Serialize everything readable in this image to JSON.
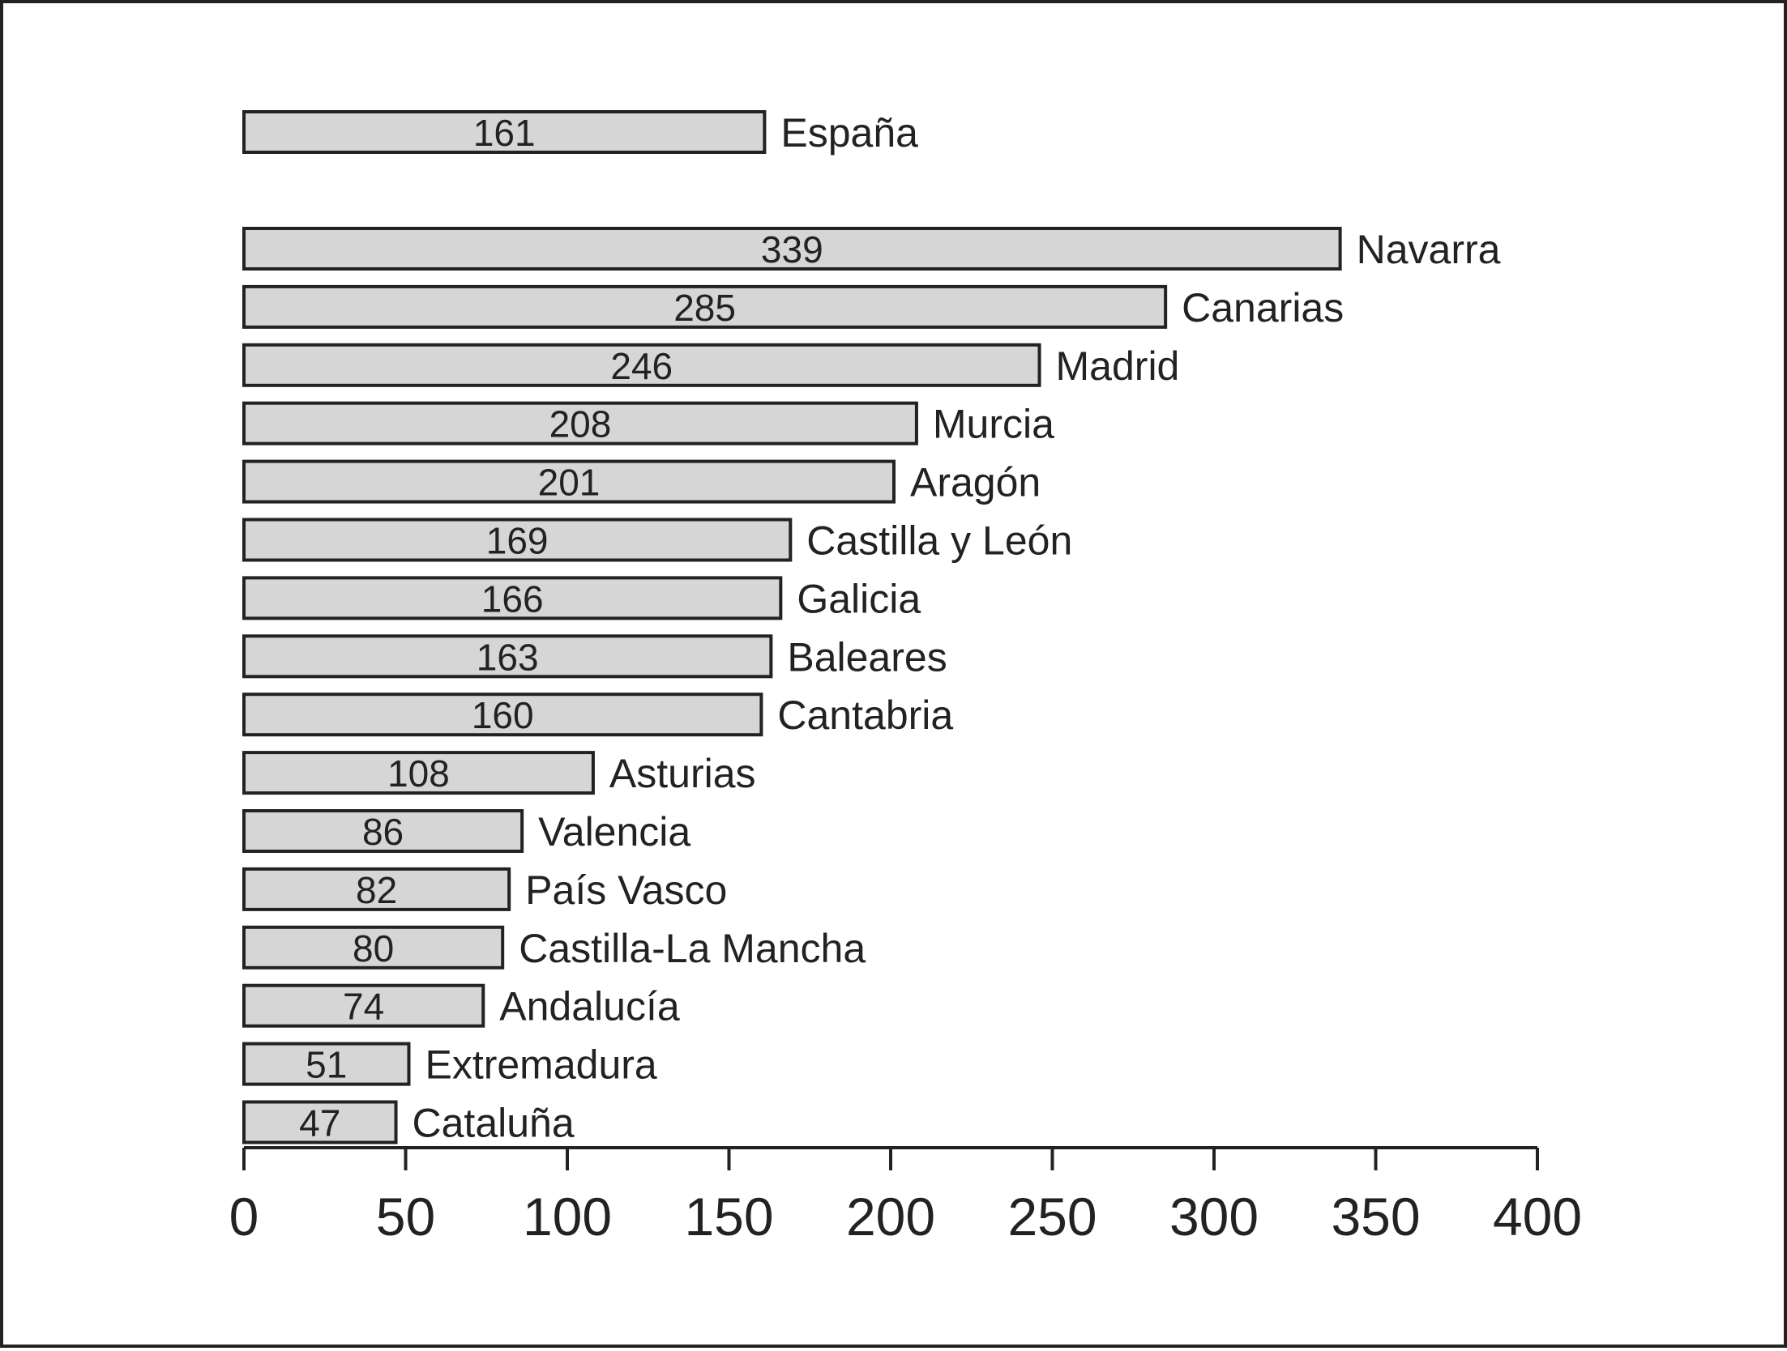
{
  "chart_data": {
    "type": "bar",
    "orientation": "horizontal",
    "title": "",
    "xlabel": "",
    "ylabel": "",
    "xlim": [
      0,
      400
    ],
    "xticks": [
      0,
      50,
      100,
      150,
      200,
      250,
      300,
      350,
      400
    ],
    "grid": false,
    "legend": "none",
    "bar_fill": "#d6d6d6",
    "bar_stroke": "#222222",
    "categories": [
      "España",
      "Navarra",
      "Canarias",
      "Madrid",
      "Murcia",
      "Aragón",
      "Castilla y León",
      "Galicia",
      "Baleares",
      "Cantabria",
      "Asturias",
      "Valencia",
      "País Vasco",
      "Castilla-La Mancha",
      "Andalucía",
      "Extremadura",
      "Cataluña"
    ],
    "values": [
      161,
      339,
      285,
      246,
      208,
      201,
      169,
      166,
      163,
      160,
      108,
      86,
      82,
      80,
      74,
      51,
      47
    ]
  }
}
